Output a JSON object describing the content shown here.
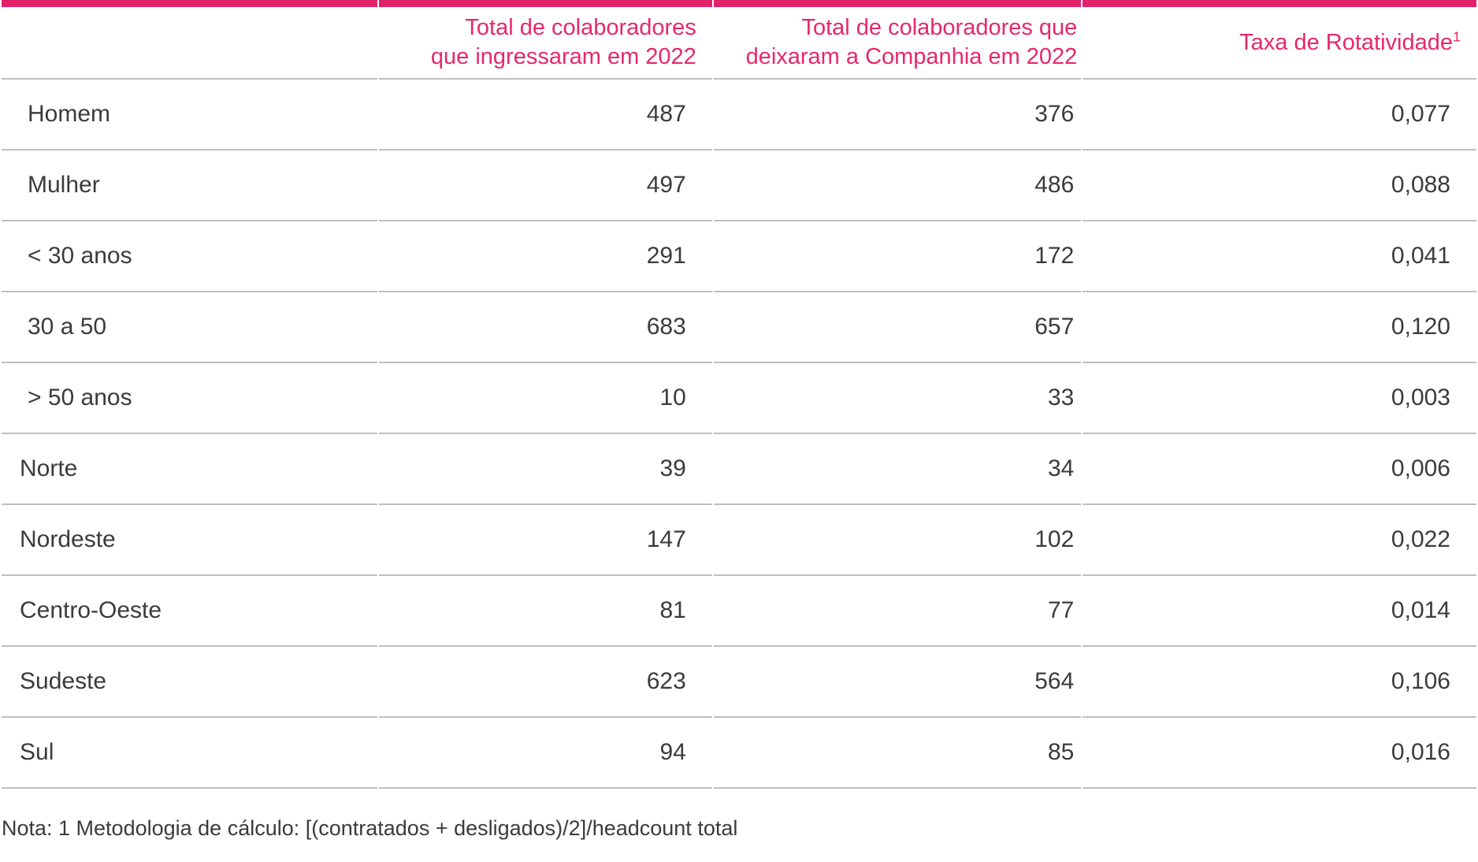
{
  "colors": {
    "accent_pink": "#E6286B",
    "top_bar_pink": "#E0226A",
    "divider_gray": "#BFBFBF",
    "text_dark": "#3B3B3A"
  },
  "table": {
    "columns": [
      {
        "id": "category",
        "line1": "",
        "line2": ""
      },
      {
        "id": "ingressaram",
        "line1": "Total de colaboradores",
        "line2": "que ingressaram em 2022"
      },
      {
        "id": "deixaram",
        "line1": "Total de colaboradores que",
        "line2": "deixaram a Companhia em 2022"
      },
      {
        "id": "taxa",
        "line1": "Taxa de Rotatividade",
        "sup": "1"
      }
    ],
    "rows": [
      {
        "label": "Homem",
        "ingressaram": "487",
        "deixaram": "376",
        "taxa": "0,077"
      },
      {
        "label": "Mulher",
        "ingressaram": "497",
        "deixaram": "486",
        "taxa": "0,088"
      },
      {
        "label": "< 30 anos",
        "ingressaram": "291",
        "deixaram": "172",
        "taxa": "0,041"
      },
      {
        "label": "30 a 50",
        "ingressaram": "683",
        "deixaram": "657",
        "taxa": "0,120"
      },
      {
        "label": "> 50 anos",
        "ingressaram": "10",
        "deixaram": "33",
        "taxa": "0,003"
      },
      {
        "label": "Norte",
        "ingressaram": "39",
        "deixaram": "34",
        "taxa": "0,006"
      },
      {
        "label": "Nordeste",
        "ingressaram": "147",
        "deixaram": "102",
        "taxa": "0,022"
      },
      {
        "label": "Centro-Oeste",
        "ingressaram": "81",
        "deixaram": "77",
        "taxa": "0,014"
      },
      {
        "label": "Sudeste",
        "ingressaram": "623",
        "deixaram": "564",
        "taxa": "0,106"
      },
      {
        "label": "Sul",
        "ingressaram": "94",
        "deixaram": "85",
        "taxa": "0,016"
      }
    ],
    "note": "Nota: 1 Metodologia de cálculo: [(contratados + desligados)/2]/headcount total"
  },
  "chart_data": {
    "type": "table",
    "columns": [
      "",
      "Total de colaboradores que ingressaram em 2022",
      "Total de colaboradores que deixaram a Companhia em 2022",
      "Taxa de Rotatividade¹"
    ],
    "rows": [
      [
        "Homem",
        487,
        376,
        "0,077"
      ],
      [
        "Mulher",
        497,
        486,
        "0,088"
      ],
      [
        "< 30 anos",
        291,
        172,
        "0,041"
      ],
      [
        "30 a 50",
        683,
        657,
        "0,120"
      ],
      [
        "> 50 anos",
        10,
        33,
        "0,003"
      ],
      [
        "Norte",
        39,
        34,
        "0,006"
      ],
      [
        "Nordeste",
        147,
        102,
        "0,022"
      ],
      [
        "Centro-Oeste",
        81,
        77,
        "0,014"
      ],
      [
        "Sudeste",
        623,
        564,
        "0,106"
      ],
      [
        "Sul",
        94,
        85,
        "0,016"
      ]
    ],
    "note": "Nota: 1 Metodologia de cálculo: [(contratados + desligados)/2]/headcount total"
  }
}
